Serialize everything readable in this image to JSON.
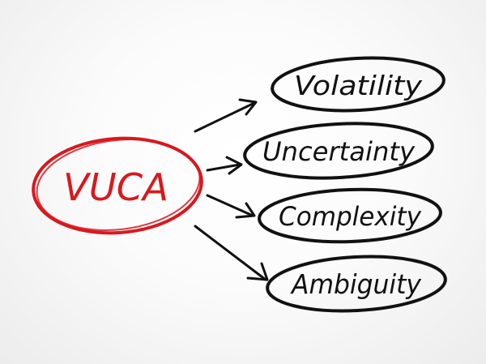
{
  "center": {
    "label": "VUCA",
    "color": "#d7191f"
  },
  "terms": [
    {
      "label": "Volatility"
    },
    {
      "label": "Uncertainty"
    },
    {
      "label": "Complexity"
    },
    {
      "label": "Ambiguity"
    }
  ],
  "colors": {
    "ink": "#111111",
    "accent": "#d7191f",
    "background": "#ffffff"
  }
}
